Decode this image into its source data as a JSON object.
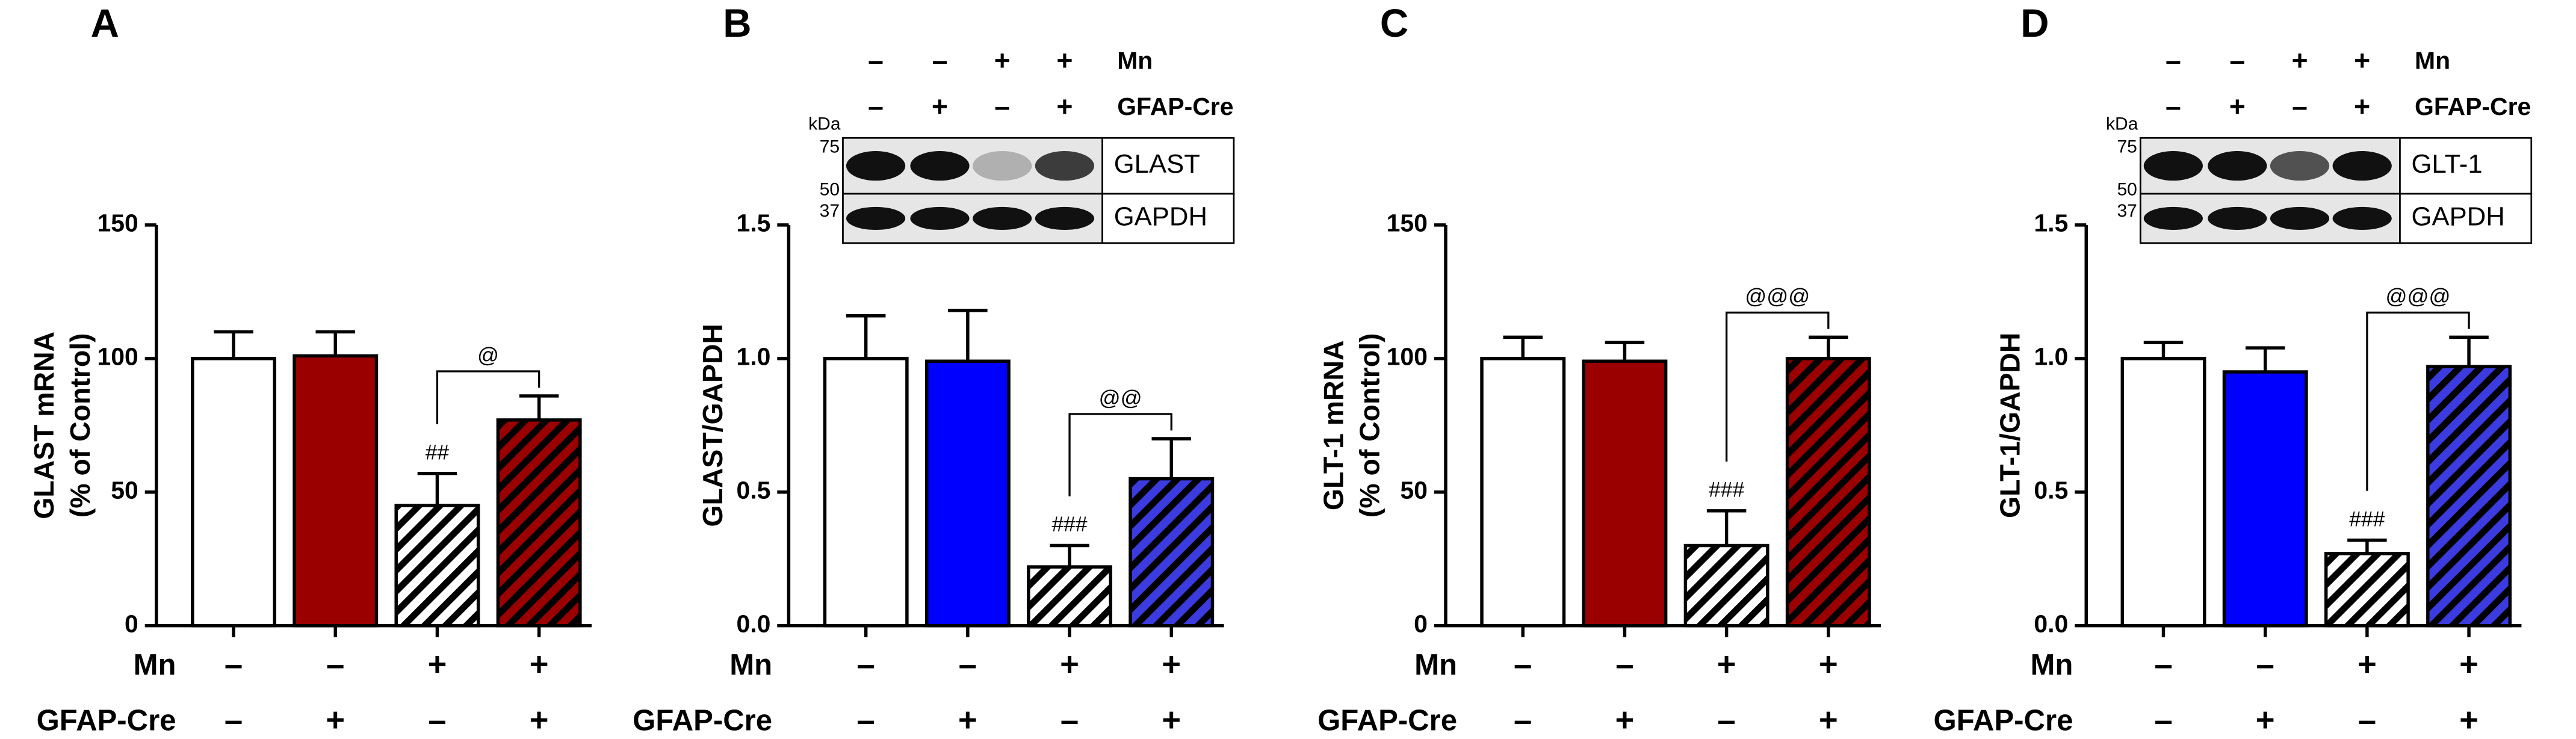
{
  "chart_data": [
    {
      "type": "bar",
      "panel": "A",
      "ylabel": [
        "GLAST mRNA",
        "(% of Control)"
      ],
      "values": [
        100,
        101,
        45,
        77
      ],
      "errors": [
        10,
        9,
        12,
        9
      ],
      "colors": [
        "#ffffff",
        "#9b0000",
        "#ffffff",
        "#9b0000"
      ],
      "hatched": [
        false,
        false,
        true,
        true
      ],
      "ylim": [
        0,
        150
      ],
      "yticks": [
        0,
        50,
        100,
        150
      ],
      "annotations": [
        null,
        null,
        "##",
        null
      ],
      "comparison": {
        "label": "@",
        "between": [
          2,
          3
        ]
      },
      "conditions": [
        {
          "label": "Mn",
          "signs": [
            "–",
            "–",
            "+",
            "+"
          ]
        },
        {
          "label": "GFAP-Cre",
          "signs": [
            "–",
            "+",
            "–",
            "+"
          ]
        }
      ]
    },
    {
      "type": "bar",
      "panel": "B",
      "ylabel": [
        "GLAST/GAPDH"
      ],
      "values": [
        1.0,
        0.99,
        0.22,
        0.55
      ],
      "errors": [
        0.16,
        0.19,
        0.08,
        0.15
      ],
      "colors": [
        "#ffffff",
        "#0000ff",
        "#ffffff",
        "#3b3bdf"
      ],
      "hatched": [
        false,
        false,
        true,
        true
      ],
      "ylim": [
        0,
        1.5
      ],
      "yticks": [
        {
          "value": 0,
          "label": "0.0"
        },
        0.5,
        {
          "value": 1,
          "label": "1.0"
        },
        1.5
      ],
      "annotations": [
        null,
        null,
        "###",
        null
      ],
      "comparison": {
        "label": "@@",
        "between": [
          2,
          3
        ]
      },
      "conditions": [
        {
          "label": "Mn",
          "signs": [
            "–",
            "–",
            "+",
            "+"
          ]
        },
        {
          "label": "GFAP-Cre",
          "signs": [
            "–",
            "+",
            "–",
            "+"
          ]
        }
      ],
      "blot": {
        "rows": [
          {
            "label": "Mn",
            "signs": [
              "–",
              "–",
              "+",
              "+"
            ]
          },
          {
            "label": "GFAP-Cre",
            "signs": [
              "–",
              "+",
              "–",
              "+"
            ]
          }
        ],
        "unit": "kDa",
        "markers": [
          75,
          50,
          37
        ],
        "bands": [
          "GLAST",
          "GAPDH"
        ]
      }
    },
    {
      "type": "bar",
      "panel": "C",
      "ylabel": [
        "GLT-1 mRNA",
        "(% of Control)"
      ],
      "values": [
        100,
        99,
        30,
        100
      ],
      "errors": [
        8,
        7,
        13,
        8
      ],
      "colors": [
        "#ffffff",
        "#9b0000",
        "#ffffff",
        "#9b0000"
      ],
      "hatched": [
        false,
        false,
        true,
        true
      ],
      "ylim": [
        0,
        150
      ],
      "yticks": [
        0,
        50,
        100,
        150
      ],
      "annotations": [
        null,
        null,
        "###",
        null
      ],
      "comparison": {
        "label": "@@@",
        "between": [
          2,
          3
        ]
      },
      "conditions": [
        {
          "label": "Mn",
          "signs": [
            "–",
            "–",
            "+",
            "+"
          ]
        },
        {
          "label": "GFAP-Cre",
          "signs": [
            "–",
            "+",
            "–",
            "+"
          ]
        }
      ]
    },
    {
      "type": "bar",
      "panel": "D",
      "ylabel": [
        "GLT-1/GAPDH"
      ],
      "values": [
        1.0,
        0.95,
        0.27,
        0.97
      ],
      "errors": [
        0.06,
        0.09,
        0.05,
        0.11
      ],
      "colors": [
        "#ffffff",
        "#0000ff",
        "#ffffff",
        "#3b3bdf"
      ],
      "hatched": [
        false,
        false,
        true,
        true
      ],
      "ylim": [
        0,
        1.5
      ],
      "yticks": [
        {
          "value": 0,
          "label": "0.0"
        },
        0.5,
        {
          "value": 1,
          "label": "1.0"
        },
        1.5
      ],
      "annotations": [
        null,
        null,
        "###",
        null
      ],
      "comparison": {
        "label": "@@@",
        "between": [
          2,
          3
        ]
      },
      "conditions": [
        {
          "label": "Mn",
          "signs": [
            "–",
            "–",
            "+",
            "+"
          ]
        },
        {
          "label": "GFAP-Cre",
          "signs": [
            "–",
            "+",
            "–",
            "+"
          ]
        }
      ],
      "blot": {
        "rows": [
          {
            "label": "Mn",
            "signs": [
              "–",
              "–",
              "+",
              "+"
            ]
          },
          {
            "label": "GFAP-Cre",
            "signs": [
              "–",
              "+",
              "–",
              "+"
            ]
          }
        ],
        "unit": "kDa",
        "markers": [
          75,
          50,
          37
        ],
        "bands": [
          "GLT-1",
          "GAPDH"
        ]
      }
    }
  ]
}
